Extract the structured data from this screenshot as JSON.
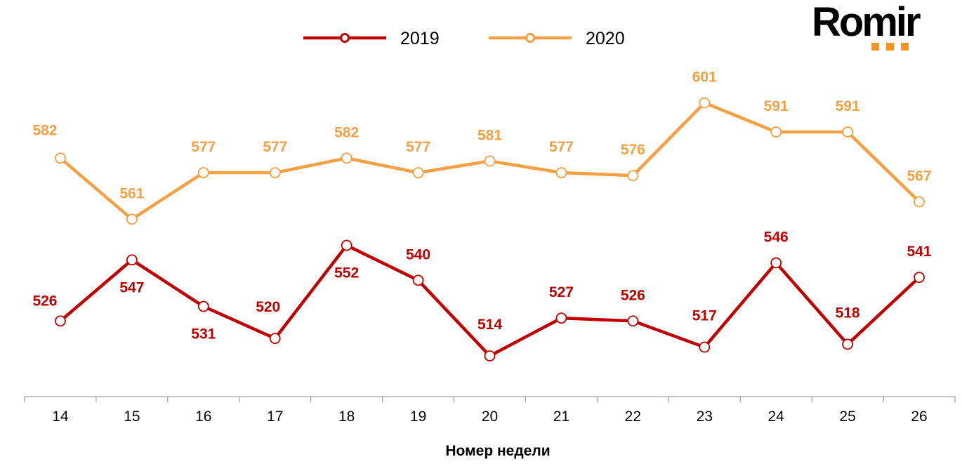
{
  "logo": {
    "text": "Romir",
    "accent_color": "#F7941D"
  },
  "chart_data": {
    "type": "line",
    "title": "",
    "xlabel": "Номер недели",
    "ylabel": "",
    "categories": [
      "14",
      "15",
      "16",
      "17",
      "18",
      "19",
      "20",
      "21",
      "22",
      "23",
      "24",
      "25",
      "26"
    ],
    "series": [
      {
        "name": "2019",
        "color": "#C00000",
        "values": [
          526,
          547,
          531,
          520,
          552,
          540,
          514,
          527,
          526,
          517,
          546,
          518,
          541
        ]
      },
      {
        "name": "2020",
        "color": "#F4A043",
        "values": [
          582,
          561,
          577,
          577,
          582,
          577,
          581,
          577,
          576,
          601,
          591,
          591,
          567
        ]
      }
    ],
    "ylim": [
      500,
      636
    ],
    "grid": false,
    "y_axis_visible": false,
    "data_labels": true,
    "legend_position": "top"
  }
}
